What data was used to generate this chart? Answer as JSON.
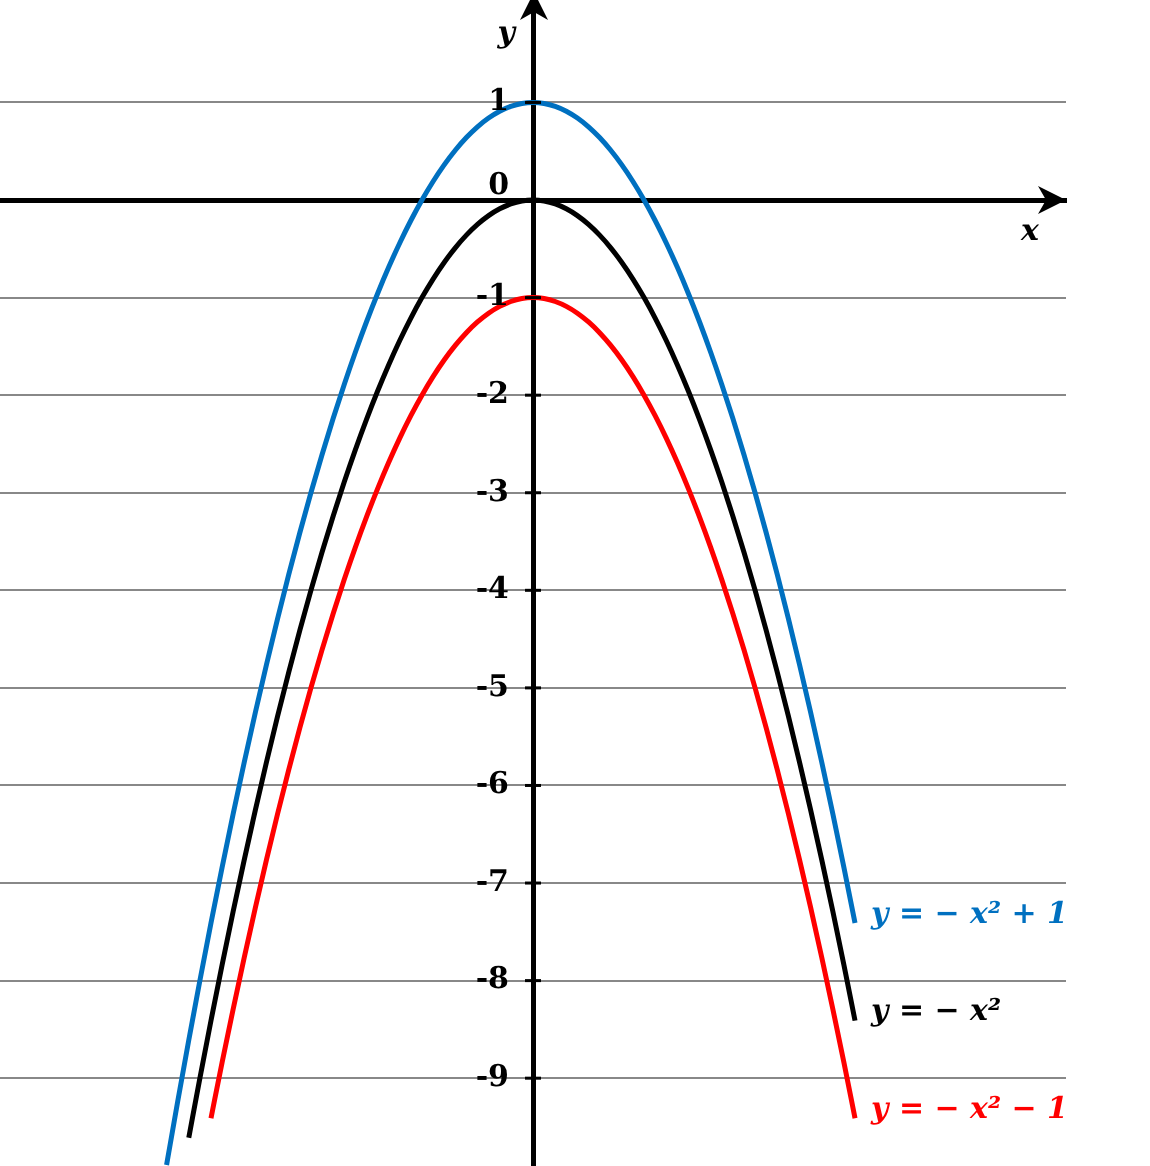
{
  "chart_data": {
    "type": "line",
    "xlabel": "x",
    "ylabel": "y",
    "categories": [
      null,
      null,
      null,
      null,
      null,
      null,
      null,
      null,
      null,
      null,
      null,
      null,
      null,
      null,
      null,
      null,
      null,
      null,
      null,
      null,
      null,
      null,
      null,
      null,
      null,
      null,
      null,
      null,
      null,
      null,
      null,
      null,
      null,
      null,
      null,
      null,
      null,
      null,
      null,
      null,
      null,
      null,
      null,
      null,
      null,
      null,
      null,
      null,
      null,
      null,
      null,
      null,
      null,
      null,
      null,
      null,
      null,
      null,
      null,
      null,
      null,
      null,
      null,
      null,
      null,
      null,
      null,
      null,
      null,
      null,
      null,
      null,
      null,
      null,
      null,
      null,
      null,
      null,
      null,
      null,
      null,
      null,
      null,
      null,
      null,
      null,
      null,
      null,
      null,
      null,
      null,
      null,
      null,
      null,
      null,
      null,
      null
    ],
    "ylim": [
      -9.9,
      2.05
    ],
    "yticks": [
      1,
      0,
      -1,
      -2,
      -3,
      -4,
      -5,
      -6,
      -7,
      -8,
      -9
    ],
    "tick_labels": "y",
    "grid": "y",
    "legend": false,
    "marker": "none",
    "line_style": "solid",
    "series": [
      {
        "name": "y = − x² + 1",
        "color": "#0070c0",
        "values": [
          null,
          null,
          null,
          null,
          null,
          null,
          null,
          null,
          null,
          null,
          null,
          null,
          null,
          null,
          null,
          -9.89,
          -9.24,
          -8.61,
          -8,
          -7.41,
          -6.84,
          -6.29,
          -5.76,
          -5.25,
          -4.76,
          -4.29,
          -3.84,
          -3.41,
          -3,
          -2.61,
          -2.24,
          -1.89,
          -1.56,
          -1.25,
          -0.96,
          -0.69,
          -0.44,
          -0.21,
          0,
          0.19,
          0.36,
          0.51,
          0.64,
          0.75,
          0.84,
          0.91,
          0.96,
          0.99,
          1,
          0.99,
          0.96,
          0.91,
          0.84,
          0.75,
          0.64,
          0.51,
          0.36,
          0.19,
          0,
          -0.21,
          -0.44,
          -0.69,
          -0.96,
          -1.25,
          -1.56,
          -1.89,
          -2.24,
          -2.61,
          -3,
          -3.41,
          -3.84,
          -4.29,
          -4.76,
          -5.25,
          -5.76,
          -6.29,
          -6.84,
          -7.41,
          null,
          null,
          null,
          null,
          null,
          null,
          null,
          null,
          null,
          null,
          null,
          null,
          null,
          null,
          null,
          null,
          null,
          null,
          null
        ]
      },
      {
        "name": "y = − x²",
        "color": "#000000",
        "values": [
          null,
          null,
          null,
          null,
          null,
          null,
          null,
          null,
          null,
          null,
          null,
          null,
          null,
          null,
          null,
          null,
          null,
          -9.61,
          -9,
          -8.41,
          -7.84,
          -7.29,
          -6.76,
          -6.25,
          -5.76,
          -5.29,
          -4.84,
          -4.41,
          -4,
          -3.61,
          -3.24,
          -2.89,
          -2.56,
          -2.25,
          -1.96,
          -1.69,
          -1.44,
          -1.21,
          -1,
          -0.81,
          -0.64,
          -0.49,
          -0.36,
          -0.25,
          -0.16,
          -0.09,
          -0.04,
          -0.01,
          0,
          -0.01,
          -0.04,
          -0.09,
          -0.16,
          -0.25,
          -0.36,
          -0.49,
          -0.64,
          -0.81,
          -1,
          -1.21,
          -1.44,
          -1.69,
          -1.96,
          -2.25,
          -2.56,
          -2.89,
          -3.24,
          -3.61,
          -4,
          -4.41,
          -4.84,
          -5.29,
          -5.76,
          -6.25,
          -6.76,
          -7.29,
          -7.84,
          -8.41,
          null,
          null,
          null,
          null,
          null,
          null,
          null,
          null,
          null,
          null,
          null,
          null,
          null,
          null,
          null,
          null,
          null,
          null,
          null
        ]
      },
      {
        "name": "y = − x² − 1",
        "color": "#ff0000",
        "values": [
          null,
          null,
          null,
          null,
          null,
          null,
          null,
          null,
          null,
          null,
          null,
          null,
          null,
          null,
          null,
          null,
          null,
          null,
          null,
          -9.41,
          -8.84,
          -8.29,
          -7.76,
          -7.25,
          -6.76,
          -6.29,
          -5.84,
          -5.41,
          -5,
          -4.61,
          -4.24,
          -3.89,
          -3.56,
          -3.25,
          -2.96,
          -2.69,
          -2.44,
          -2.21,
          -2,
          -1.81,
          -1.64,
          -1.49,
          -1.36,
          -1.25,
          -1.16,
          -1.09,
          -1.04,
          -1.01,
          -1,
          -1.01,
          -1.04,
          -1.09,
          -1.16,
          -1.25,
          -1.36,
          -1.49,
          -1.64,
          -1.81,
          -2,
          -2.21,
          -2.44,
          -2.69,
          -2.96,
          -3.25,
          -3.56,
          -3.89,
          -4.24,
          -4.61,
          -5,
          -5.41,
          -5.84,
          -6.29,
          -6.76,
          -7.25,
          -7.76,
          -8.29,
          -8.84,
          -9.41,
          null,
          null,
          null,
          null,
          null,
          null,
          null,
          null,
          null,
          null,
          null,
          null,
          null,
          null,
          null,
          null,
          null,
          null,
          null
        ]
      }
    ]
  }
}
